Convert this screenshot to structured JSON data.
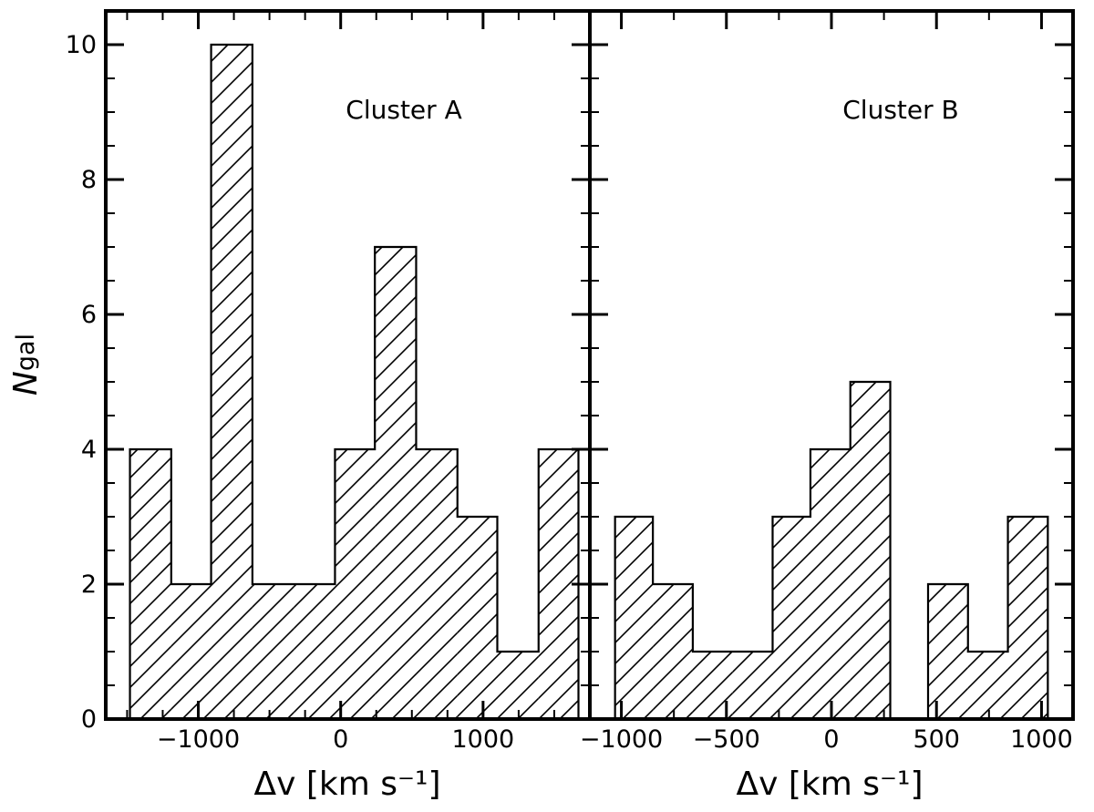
{
  "y_axis_label": {
    "symbol": "N",
    "subscript": "gal"
  },
  "chart_data": [
    {
      "type": "histogram",
      "annotation": "Cluster A",
      "xlabel": "Δv [km s⁻¹]",
      "ylabel": "N_gal",
      "xlim": [
        -1650,
        1750
      ],
      "ylim": [
        0,
        10.5
      ],
      "xticks": [
        -1000,
        0,
        1000
      ],
      "xtick_labels": [
        "−1000",
        "0",
        "1000"
      ],
      "yticks": [
        0,
        2,
        4,
        6,
        8,
        10
      ],
      "ytick_labels": [
        "0",
        "2",
        "4",
        "6",
        "8",
        "10"
      ],
      "bin_edges": [
        -1480,
        -1190,
        -910,
        -620,
        -330,
        -40,
        240,
        530,
        820,
        1100,
        1390,
        1670
      ],
      "counts": [
        4,
        2,
        10,
        2,
        2,
        4,
        7,
        4,
        3,
        1,
        4
      ],
      "fill": "hatched //",
      "grid": false
    },
    {
      "type": "histogram",
      "annotation": "Cluster B",
      "xlabel": "Δv [km s⁻¹]",
      "ylabel": "N_gal",
      "xlim": [
        -1150,
        1150
      ],
      "ylim": [
        0,
        10.5
      ],
      "xticks": [
        -1000,
        -500,
        0,
        500,
        1000
      ],
      "xtick_labels": [
        "−1000",
        "−500",
        "0",
        "500",
        "1000"
      ],
      "yticks": [
        0,
        2,
        4,
        6,
        8,
        10
      ],
      "bin_edges": [
        -1030,
        -850,
        -660,
        -470,
        -280,
        -100,
        90,
        280,
        460,
        650,
        840,
        1030
      ],
      "counts": [
        3,
        2,
        1,
        1,
        3,
        4,
        5,
        0,
        2,
        1,
        3
      ],
      "fill": "hatched //",
      "grid": false
    }
  ]
}
